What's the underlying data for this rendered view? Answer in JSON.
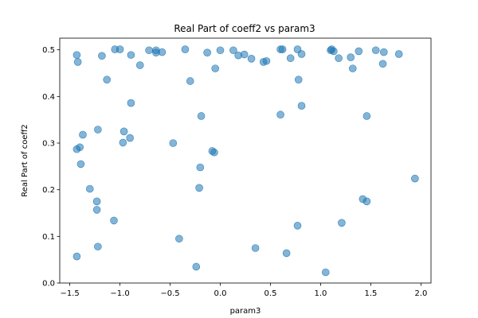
{
  "chart_data": {
    "type": "scatter",
    "title": "Real Part of coeff2 vs param3",
    "xlabel": "param3",
    "ylabel": "Real Part of coeff2",
    "xlim": [
      -1.6,
      2.1
    ],
    "ylim": [
      0.0,
      0.525
    ],
    "xticks": [
      -1.5,
      -1.0,
      -0.5,
      0.0,
      0.5,
      1.0,
      1.5,
      2.0
    ],
    "xtick_labels": [
      "−1.5",
      "−1.0",
      "−0.5",
      "0.0",
      "0.5",
      "1.0",
      "1.5",
      "2.0"
    ],
    "yticks": [
      0.0,
      0.1,
      0.2,
      0.3,
      0.4,
      0.5
    ],
    "ytick_labels": [
      "0.0",
      "0.1",
      "0.2",
      "0.3",
      "0.4",
      "0.5"
    ],
    "grid": false,
    "marker_color": "#1f77b4",
    "marker_alpha": 0.55,
    "points": [
      [
        -1.43,
        0.489
      ],
      [
        -1.42,
        0.474
      ],
      [
        -1.18,
        0.487
      ],
      [
        -1.05,
        0.501
      ],
      [
        -1.0,
        0.501
      ],
      [
        -0.89,
        0.489
      ],
      [
        -0.71,
        0.499
      ],
      [
        -0.64,
        0.494
      ],
      [
        -0.64,
        0.499
      ],
      [
        -0.58,
        0.495
      ],
      [
        -0.35,
        0.501
      ],
      [
        -0.13,
        0.494
      ],
      [
        0.0,
        0.499
      ],
      [
        0.13,
        0.499
      ],
      [
        0.18,
        0.488
      ],
      [
        0.24,
        0.49
      ],
      [
        0.31,
        0.481
      ],
      [
        0.43,
        0.474
      ],
      [
        0.46,
        0.476
      ],
      [
        0.6,
        0.501
      ],
      [
        0.62,
        0.501
      ],
      [
        0.7,
        0.482
      ],
      [
        0.77,
        0.501
      ],
      [
        0.81,
        0.491
      ],
      [
        1.1,
        0.499
      ],
      [
        1.11,
        0.501
      ],
      [
        1.13,
        0.497
      ],
      [
        1.18,
        0.482
      ],
      [
        1.3,
        0.484
      ],
      [
        1.38,
        0.497
      ],
      [
        1.55,
        0.499
      ],
      [
        1.63,
        0.495
      ],
      [
        1.78,
        0.491
      ],
      [
        1.62,
        0.47
      ],
      [
        1.32,
        0.46
      ],
      [
        -0.05,
        0.46
      ],
      [
        -1.13,
        0.436
      ],
      [
        -0.8,
        0.467
      ],
      [
        -0.3,
        0.433
      ],
      [
        0.78,
        0.436
      ],
      [
        -0.89,
        0.386
      ],
      [
        -0.19,
        0.358
      ],
      [
        0.6,
        0.361
      ],
      [
        0.81,
        0.38
      ],
      [
        1.46,
        0.358
      ],
      [
        -1.22,
        0.329
      ],
      [
        -1.37,
        0.318
      ],
      [
        -0.96,
        0.325
      ],
      [
        -0.97,
        0.301
      ],
      [
        -0.9,
        0.311
      ],
      [
        -0.47,
        0.3
      ],
      [
        -1.43,
        0.287
      ],
      [
        -1.4,
        0.291
      ],
      [
        -0.08,
        0.283
      ],
      [
        -0.06,
        0.28
      ],
      [
        -1.39,
        0.255
      ],
      [
        -0.2,
        0.248
      ],
      [
        -1.3,
        0.202
      ],
      [
        -0.21,
        0.204
      ],
      [
        1.94,
        0.224
      ],
      [
        -1.23,
        0.175
      ],
      [
        -1.23,
        0.157
      ],
      [
        1.42,
        0.18
      ],
      [
        1.46,
        0.175
      ],
      [
        -1.06,
        0.134
      ],
      [
        1.21,
        0.129
      ],
      [
        0.77,
        0.123
      ],
      [
        -0.41,
        0.095
      ],
      [
        -1.22,
        0.078
      ],
      [
        0.35,
        0.075
      ],
      [
        -1.43,
        0.057
      ],
      [
        0.66,
        0.064
      ],
      [
        -0.24,
        0.035
      ],
      [
        1.05,
        0.023
      ]
    ]
  }
}
